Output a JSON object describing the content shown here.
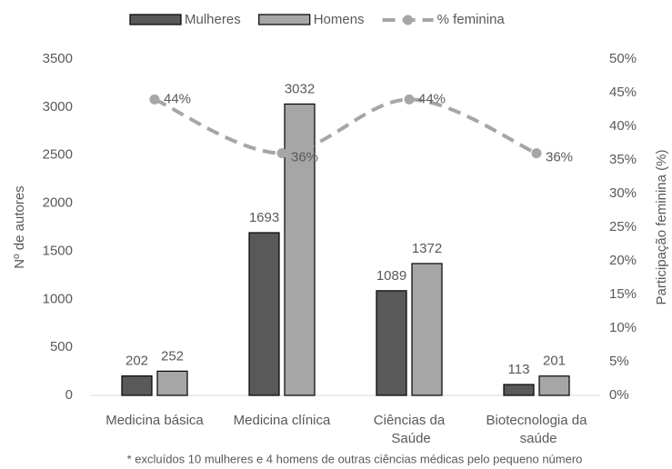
{
  "chart_data": {
    "type": "bar",
    "categories": [
      "Medicina básica",
      "Medicina clínica",
      "Ciências da Saúde",
      "Biotecnologia da saúde"
    ],
    "series": [
      {
        "name": "Mulheres",
        "color": "#595959",
        "values": [
          202,
          1693,
          1089,
          113
        ]
      },
      {
        "name": "Homens",
        "color": "#a6a6a6",
        "values": [
          252,
          3032,
          1372,
          201
        ]
      },
      {
        "name": "% feminina",
        "color": "#a6a6a6",
        "type": "line",
        "axis": "y2",
        "values": [
          44,
          36,
          44,
          36
        ],
        "value_labels": [
          "44%",
          "36%",
          "44%",
          "36%"
        ]
      }
    ],
    "ylabel": "Nº de autores",
    "y2label": "Participação feminina (%)",
    "ylim": [
      0,
      3500
    ],
    "yticks": [
      0,
      500,
      1000,
      1500,
      2000,
      2500,
      3000,
      3500
    ],
    "y2lim": [
      0,
      50
    ],
    "y2ticks": [
      {
        "value": 0,
        "label": "0%"
      },
      {
        "value": 5,
        "label": "5%"
      },
      {
        "value": 10,
        "label": "10%"
      },
      {
        "value": 15,
        "label": "15%"
      },
      {
        "value": 20,
        "label": "20%"
      },
      {
        "value": 25,
        "label": "25%"
      },
      {
        "value": 30,
        "label": "30%"
      },
      {
        "value": 35,
        "label": "35%"
      },
      {
        "value": 40,
        "label": "40%"
      },
      {
        "value": 45,
        "label": "45%"
      },
      {
        "value": 50,
        "label": "50%"
      }
    ],
    "grid": false,
    "legend": "top",
    "footnote": "* excluídos 10 mulheres e 4 homens de outras ciências médicas pelo pequeno número"
  }
}
